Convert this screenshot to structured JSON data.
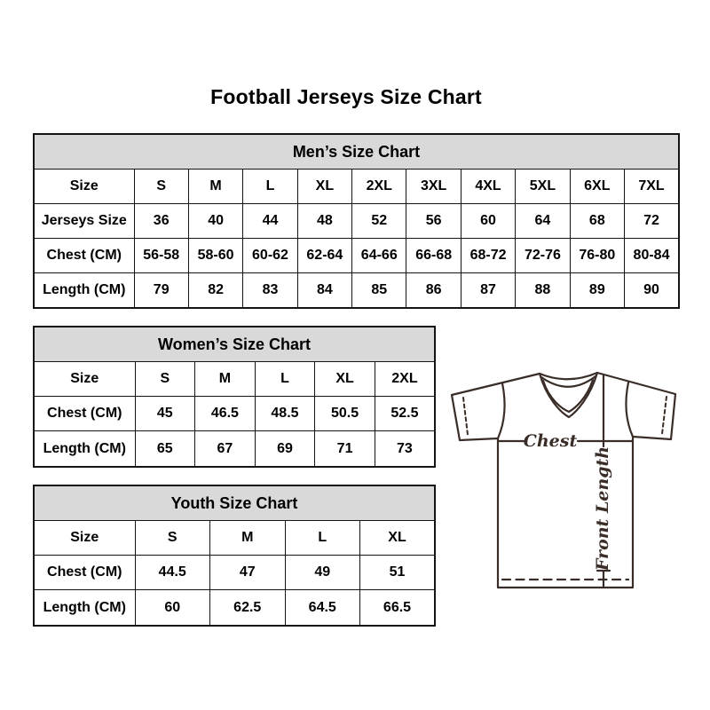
{
  "title": "Football Jerseys Size Chart",
  "chart_data": [
    {
      "type": "table",
      "title": "Men’s Size Chart",
      "rows": [
        [
          "Size",
          "S",
          "M",
          "L",
          "XL",
          "2XL",
          "3XL",
          "4XL",
          "5XL",
          "6XL",
          "7XL"
        ],
        [
          "Jerseys Size",
          "36",
          "40",
          "44",
          "48",
          "52",
          "56",
          "60",
          "64",
          "68",
          "72"
        ],
        [
          "Chest (CM)",
          "56-58",
          "58-60",
          "60-62",
          "62-64",
          "64-66",
          "66-68",
          "68-72",
          "72-76",
          "76-80",
          "80-84"
        ],
        [
          "Length (CM)",
          "79",
          "82",
          "83",
          "84",
          "85",
          "86",
          "87",
          "88",
          "89",
          "90"
        ]
      ]
    },
    {
      "type": "table",
      "title": "Women’s Size Chart",
      "rows": [
        [
          "Size",
          "S",
          "M",
          "L",
          "XL",
          "2XL"
        ],
        [
          "Chest (CM)",
          "45",
          "46.5",
          "48.5",
          "50.5",
          "52.5"
        ],
        [
          "Length (CM)",
          "65",
          "67",
          "69",
          "71",
          "73"
        ]
      ]
    },
    {
      "type": "table",
      "title": "Youth Size Chart",
      "rows": [
        [
          "Size",
          "S",
          "M",
          "L",
          "XL"
        ],
        [
          "Chest (CM)",
          "44.5",
          "47",
          "49",
          "51"
        ],
        [
          "Length (CM)",
          "60",
          "62.5",
          "64.5",
          "66.5"
        ]
      ]
    }
  ],
  "diagram": {
    "chest_label": "Chest",
    "front_length_label": "Front Length"
  },
  "colors": {
    "header_bg": "#d9d9d9",
    "table_border": "#141414",
    "diagram_line": "#3a2d28",
    "text": "#000000"
  }
}
